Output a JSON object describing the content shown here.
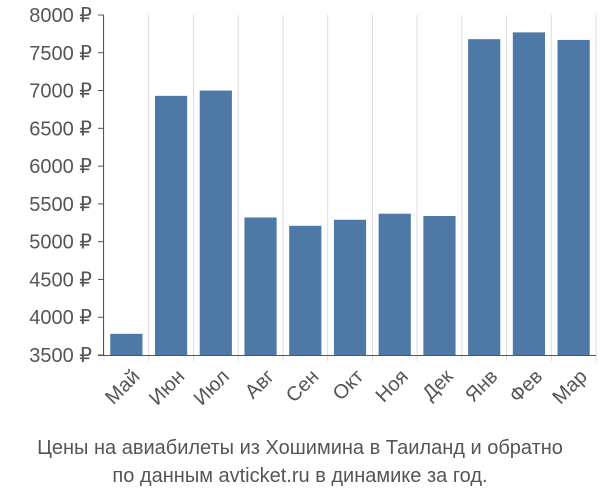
{
  "chart_data": {
    "type": "bar",
    "categories": [
      "Май",
      "Июн",
      "Июл",
      "Авг",
      "Сен",
      "Окт",
      "Ноя",
      "Дек",
      "Янв",
      "Фев",
      "Мар"
    ],
    "values": [
      3780,
      6930,
      7000,
      5320,
      5210,
      5290,
      5370,
      5340,
      7680,
      7770,
      7670
    ],
    "y_ticks": [
      {
        "value": 3500,
        "label": "3500 ₽"
      },
      {
        "value": 4000,
        "label": "4000 ₽"
      },
      {
        "value": 4500,
        "label": "4500 ₽"
      },
      {
        "value": 5000,
        "label": "5000 ₽"
      },
      {
        "value": 5500,
        "label": "5500 ₽"
      },
      {
        "value": 6000,
        "label": "6000 ₽"
      },
      {
        "value": 6500,
        "label": "6500 ₽"
      },
      {
        "value": 7000,
        "label": "7000 ₽"
      },
      {
        "value": 7500,
        "label": "7500 ₽"
      },
      {
        "value": 8000,
        "label": "8000 ₽"
      }
    ],
    "ylim": [
      3500,
      8000
    ],
    "grid": "vertical",
    "title": "",
    "xlabel": "",
    "ylabel": "",
    "caption_lines": [
      "Цены на авиабилеты из Хошимина в Таиланд и обратно",
      "по данным avticket.ru в динамике за год."
    ],
    "colors": {
      "bar": "#4e79a7",
      "grid": "#dddddd",
      "axis": "#555555",
      "text": "#555555"
    }
  }
}
